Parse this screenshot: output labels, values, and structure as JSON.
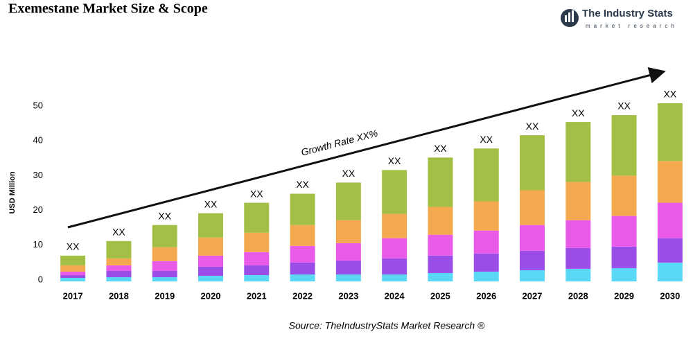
{
  "chart_data": {
    "type": "stacked_bar",
    "title": "Exemestane Market Size & Scope",
    "logo_name": "The Industry Stats",
    "logo_tagline": "market research",
    "y_label": "USD Million",
    "annotation": "Growth Rate XX%",
    "source": "Source: TheIndustryStats Market Research ®",
    "categories": [
      "2017",
      "2018",
      "2019",
      "2020",
      "2021",
      "2022",
      "2023",
      "2024",
      "2025",
      "2026",
      "2027",
      "2028",
      "2029",
      "2030"
    ],
    "series": [
      {
        "color": "#5ad8f5",
        "values": [
          1,
          1.2,
          1.2,
          1.6,
          1.8,
          2,
          2,
          2,
          2.4,
          2.8,
          3.2,
          3.6,
          3.8,
          5.4
        ]
      },
      {
        "color": "#9b4de8",
        "values": [
          0.8,
          1.8,
          1.8,
          2.6,
          2.8,
          3.4,
          4,
          4.6,
          5,
          5.2,
          5.6,
          6,
          6.2,
          7
        ]
      },
      {
        "color": "#e95ae8",
        "values": [
          1,
          1.6,
          2.8,
          3.2,
          3.8,
          4.8,
          5,
          5.8,
          6,
          6.6,
          7.4,
          8,
          8.8,
          10.2
        ]
      },
      {
        "color": "#f4a94e",
        "values": [
          1.8,
          2,
          4,
          5.2,
          5.6,
          6,
          6.6,
          7,
          8,
          8.4,
          10,
          11,
          11.6,
          12
        ]
      },
      {
        "color": "#a3bf45",
        "values": [
          2.8,
          5,
          6.4,
          7,
          8.6,
          9,
          10.8,
          12.6,
          14.2,
          15.2,
          15.8,
          17.2,
          17.4,
          16.6
        ]
      }
    ],
    "bar_labels": [
      "XX",
      "XX",
      "XX",
      "XX",
      "XX",
      "XX",
      "XX",
      "XX",
      "XX",
      "XX",
      "XX",
      "XX",
      "XX",
      "XX"
    ],
    "ylim": [
      0,
      50
    ],
    "yticks": [
      0,
      10,
      20,
      30,
      40,
      50
    ]
  }
}
